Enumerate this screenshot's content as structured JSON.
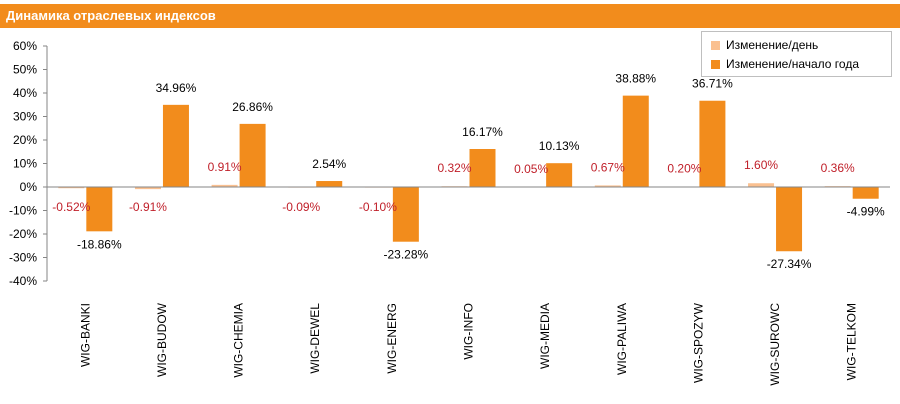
{
  "chart_data": {
    "type": "bar",
    "title": "Динамика отраслевых индексов",
    "categories": [
      "WIG-BANKI",
      "WIG-BUDOW",
      "WIG-CHEMIA",
      "WIG-DEWEL",
      "WIG-ENERG",
      "WIG-INFO",
      "WIG-MEDIA",
      "WIG-PALIWA",
      "WIG-SPOZYW",
      "WIG-SUROWC",
      "WIG-TELKOM"
    ],
    "series": [
      {
        "name": "Изменение/день",
        "color": "#FAC090",
        "label_color": "#C0202A",
        "values": [
          -0.52,
          -0.91,
          0.91,
          -0.09,
          -0.1,
          0.32,
          0.05,
          0.67,
          0.2,
          1.6,
          0.36
        ],
        "labels": [
          "-0.52%",
          "-0.91%",
          "0.91%",
          "-0.09%",
          "-0.10%",
          "0.32%",
          "0.05%",
          "0.67%",
          "0.20%",
          "1.60%",
          "0.36%"
        ]
      },
      {
        "name": "Изменение/начало года",
        "color": "#F28C1C",
        "label_color": "#000000",
        "values": [
          -18.86,
          34.96,
          26.86,
          2.54,
          -23.28,
          16.17,
          10.13,
          38.88,
          36.71,
          -27.34,
          -4.99
        ],
        "labels": [
          "-18.86%",
          "34.96%",
          "26.86%",
          "2.54%",
          "-23.28%",
          "16.17%",
          "10.13%",
          "38.88%",
          "36.71%",
          "-27.34%",
          "-4.99%"
        ]
      }
    ],
    "yticks": [
      60,
      50,
      40,
      30,
      20,
      10,
      0,
      -10,
      -20,
      -30,
      -40
    ],
    "ytick_labels": [
      "60%",
      "50%",
      "40%",
      "30%",
      "20%",
      "10%",
      "0%",
      "-10%",
      "-20%",
      "-30%",
      "-40%"
    ],
    "ylim": [
      -40,
      60
    ],
    "xlabel": "",
    "ylabel": "",
    "grid": false,
    "legend_position": "top-right"
  }
}
